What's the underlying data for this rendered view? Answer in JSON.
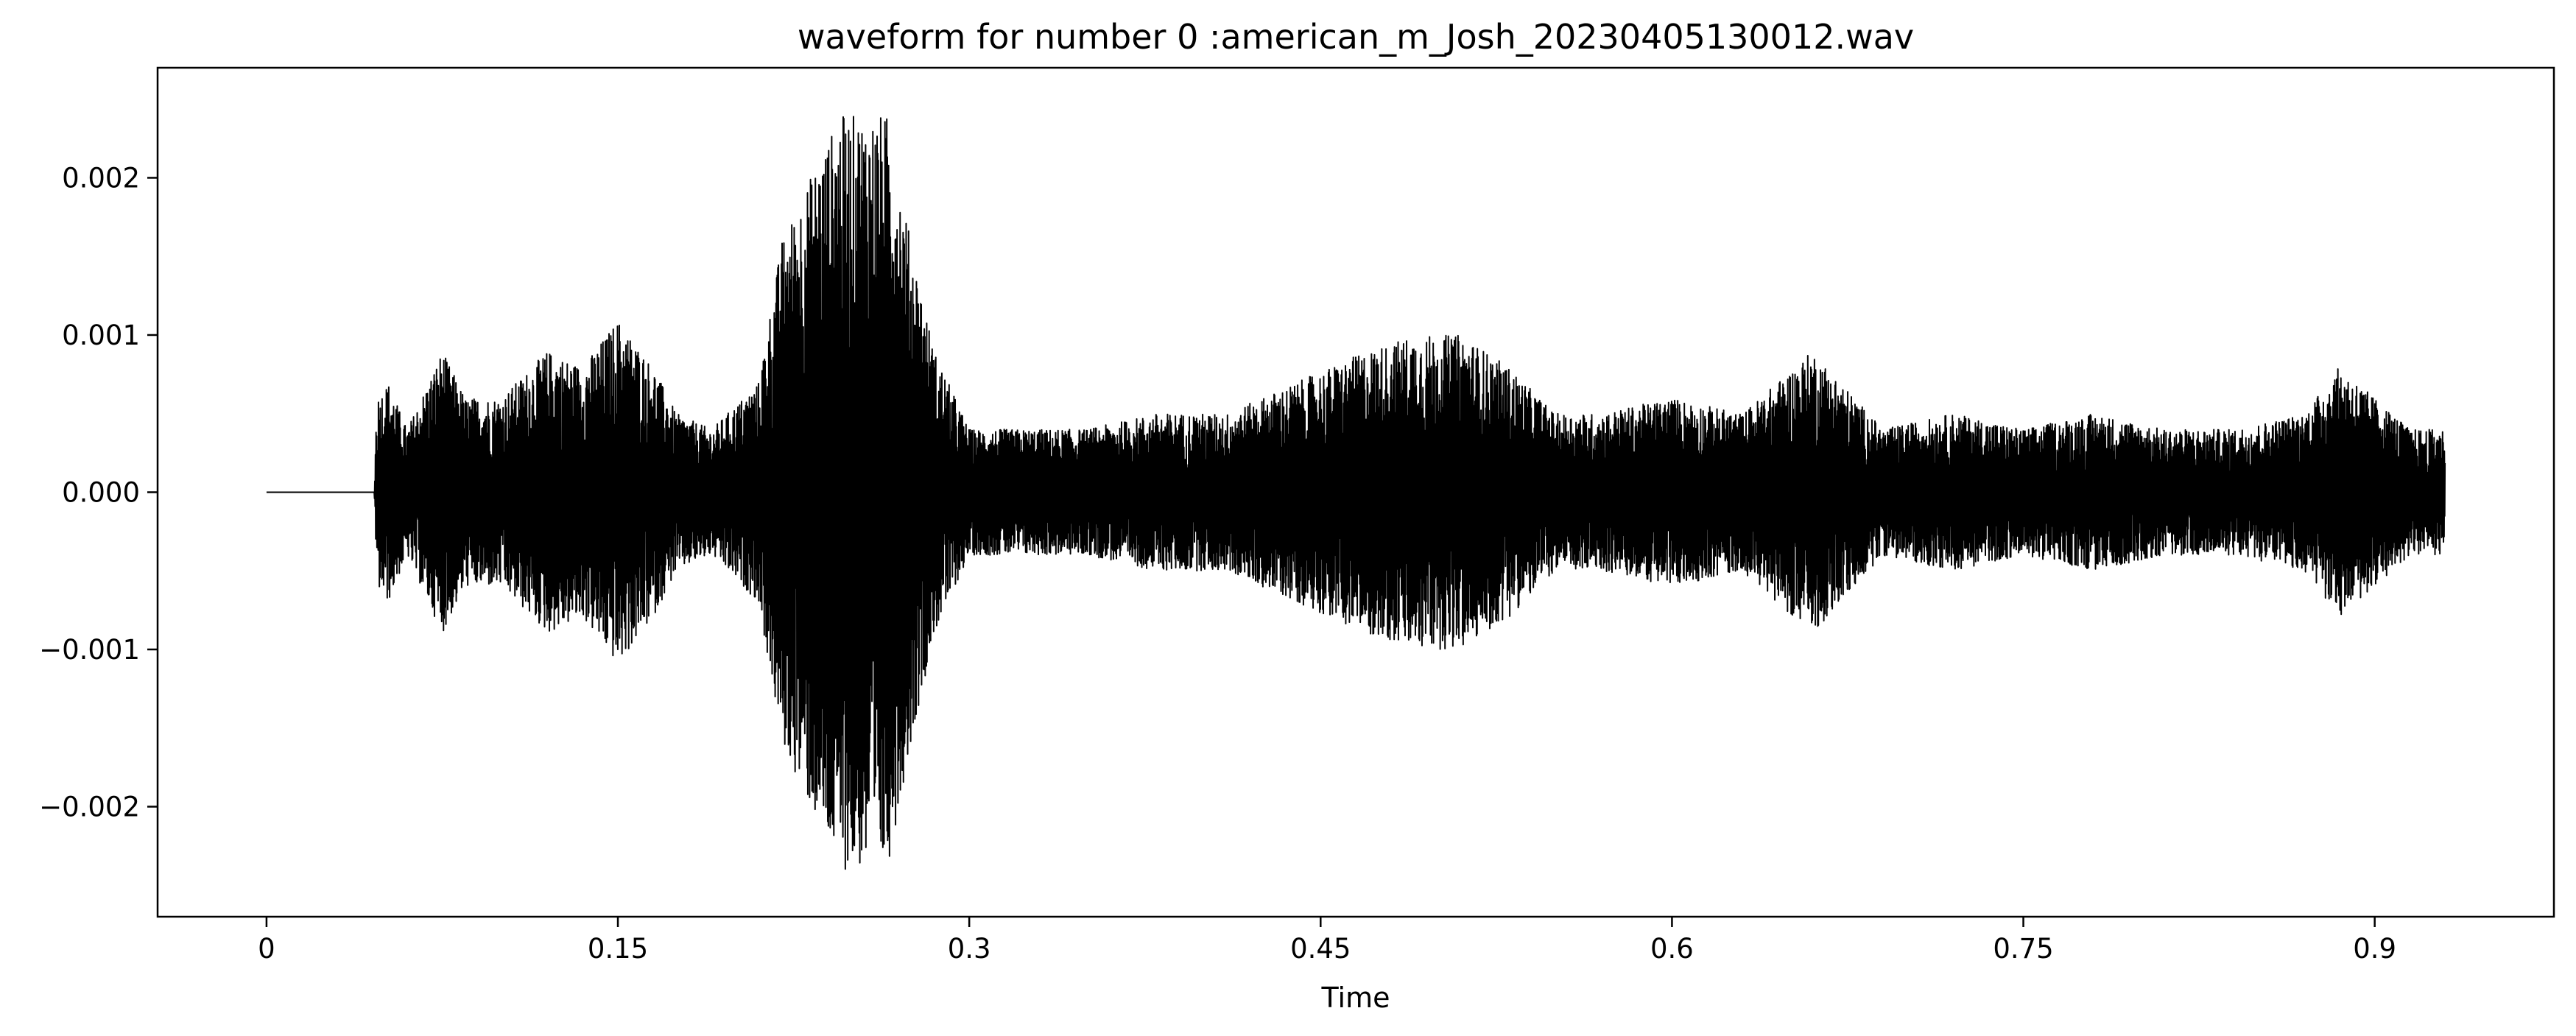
{
  "chart_data": {
    "type": "line",
    "title": "waveform for number 0 :american_m_Josh_20230405130012.wav",
    "xlabel": "Time",
    "ylabel": "",
    "xlim": [
      -0.0465,
      0.9765
    ],
    "ylim": [
      -0.0027,
      0.0027
    ],
    "x_ticks": [
      0,
      0.15,
      0.3,
      0.45,
      0.6,
      0.75,
      0.9
    ],
    "x_tick_labels": [
      "0",
      "0.15",
      "0.3",
      "0.45",
      "0.6",
      "0.75",
      "0.9"
    ],
    "y_ticks": [
      0.002,
      0.001,
      0.0,
      -0.001,
      -0.002
    ],
    "y_tick_labels": [
      "0.002",
      "0.001",
      "0.000",
      "−0.001",
      "−0.002"
    ],
    "grid": false,
    "legend": "none",
    "line_color": "#000000",
    "series": [
      {
        "x": [
          0,
          0.046,
          0.047,
          0.052,
          0.06,
          0.075,
          0.085,
          0.1,
          0.12,
          0.135,
          0.15,
          0.165,
          0.175,
          0.19,
          0.21,
          0.22,
          0.235,
          0.245,
          0.255,
          0.265,
          0.275,
          0.285,
          0.3,
          0.32,
          0.35,
          0.38,
          0.41,
          0.44,
          0.47,
          0.49,
          0.5,
          0.51,
          0.53,
          0.55,
          0.57,
          0.6,
          0.63,
          0.66,
          0.69,
          0.72,
          0.75,
          0.78,
          0.81,
          0.84,
          0.87,
          0.885,
          0.9,
          0.915,
          0.93
        ],
        "envelope": [
          0,
          0,
          0.0006,
          0.0007,
          0.0004,
          0.0009,
          0.0006,
          0.0006,
          0.0009,
          0.0008,
          0.0011,
          0.0008,
          0.0005,
          0.0004,
          0.0007,
          0.0016,
          0.0021,
          0.0024,
          0.0024,
          0.0024,
          0.0016,
          0.0009,
          0.0004,
          0.0004,
          0.0004,
          0.0005,
          0.0005,
          0.0007,
          0.0009,
          0.001,
          0.001,
          0.001,
          0.0008,
          0.0005,
          0.0005,
          0.0006,
          0.0005,
          0.0009,
          0.0004,
          0.0005,
          0.0004,
          0.0005,
          0.0004,
          0.0004,
          0.0005,
          0.0008,
          0.0006,
          0.0004,
          0.0004
        ]
      }
    ]
  }
}
